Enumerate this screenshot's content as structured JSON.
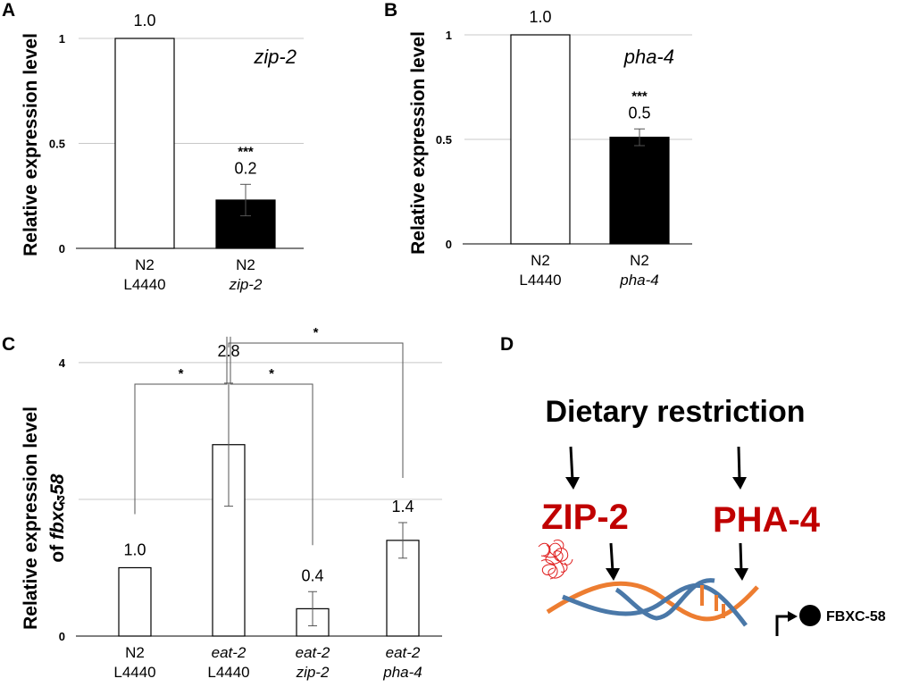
{
  "colors": {
    "filled": "#000000",
    "empty": "#ffffff",
    "grid": "#c8c8c8",
    "accent": "#c00000",
    "dna_blue": "#4a78a8",
    "dna_orange": "#ed7d31"
  },
  "chart_data": [
    {
      "type": "bar",
      "panel_label": "A",
      "ylabel": "Relative expression level",
      "ylim": [
        0,
        1
      ],
      "yticks": [
        "0",
        "0.5",
        "1"
      ],
      "annotation": "zip-2",
      "categories": [
        {
          "line1": "N2",
          "line2": "L4440",
          "italic": false
        },
        {
          "line1": "N2",
          "line2": "zip-2",
          "italic": true
        }
      ],
      "values": [
        1.0,
        0.23
      ],
      "errors": [
        0,
        0.075
      ],
      "fills": [
        "white",
        "black"
      ],
      "value_labels": [
        "1.0",
        "0.2"
      ],
      "significance": [
        "",
        "***"
      ]
    },
    {
      "type": "bar",
      "panel_label": "B",
      "ylabel": "Relative expression level",
      "ylim": [
        0,
        1
      ],
      "yticks": [
        "0",
        "0.5",
        "1"
      ],
      "annotation": "pha-4",
      "categories": [
        {
          "line1": "N2",
          "line2": "L4440",
          "italic": false
        },
        {
          "line1": "N2",
          "line2": "pha-4",
          "italic": true
        }
      ],
      "values": [
        1.0,
        0.51
      ],
      "errors": [
        0,
        0.04
      ],
      "fills": [
        "white",
        "black"
      ],
      "value_labels": [
        "1.0",
        "0.5"
      ],
      "significance": [
        "",
        "***"
      ]
    },
    {
      "type": "bar",
      "panel_label": "C",
      "ylabel_line1": "Relative expression level",
      "ylabel_prefix": "of ",
      "ylabel_gene": "fbxc-58",
      "ylim": [
        0,
        4.6
      ],
      "yticks": [
        "0",
        "2",
        "4"
      ],
      "categories": [
        {
          "line1": "N2",
          "line2": "L4440"
        },
        {
          "line1": "eat-2",
          "line2": "L4440"
        },
        {
          "line1": "eat-2",
          "line2": "zip-2"
        },
        {
          "line1": "eat-2",
          "line2": "pha-4"
        }
      ],
      "values": [
        1.0,
        2.8,
        0.4,
        1.4
      ],
      "errors": [
        0,
        0.9,
        0.25,
        0.26
      ],
      "fills": [
        "white",
        "white",
        "white",
        "white"
      ],
      "value_labels": [
        "1.0",
        "2.8",
        "0.4",
        "1.4"
      ],
      "brackets": [
        {
          "from": 0,
          "to": 1,
          "y": 4.2,
          "label": "*"
        },
        {
          "from": 1,
          "to": 2,
          "y": 4.2,
          "label": "*"
        },
        {
          "from": 1,
          "to": 3,
          "y": 5.7,
          "label": "*"
        }
      ]
    }
  ],
  "diagram": {
    "panel_label": "D",
    "title": "Dietary restriction",
    "factor_1": "ZIP-2",
    "factor_2": "PHA-4",
    "target": "FBXC-58"
  }
}
